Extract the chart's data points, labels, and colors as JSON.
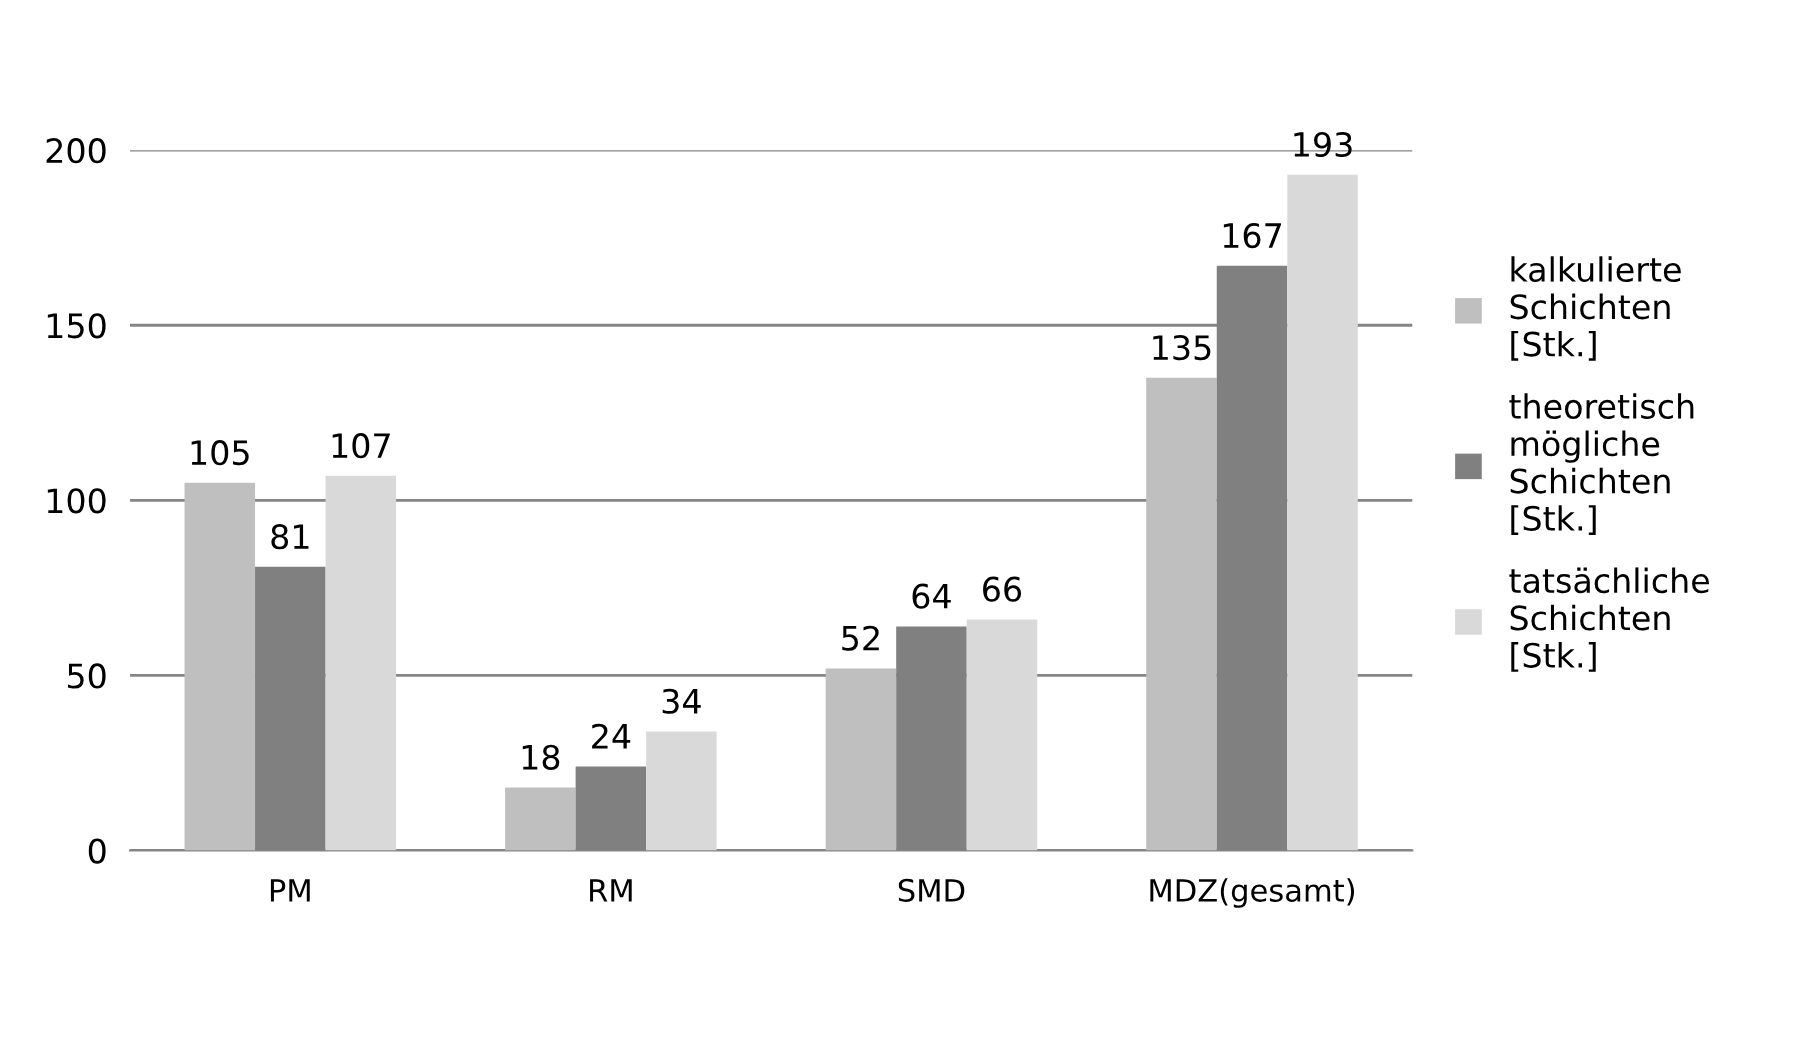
{
  "chart_data": {
    "type": "bar",
    "categories": [
      "PM",
      "RM",
      "SMD",
      "MDZ(gesamt)"
    ],
    "series": [
      {
        "name": "kalkulierte Schichten [Stk.]",
        "color": "#bfbfbf",
        "values": [
          105,
          18,
          52,
          135
        ]
      },
      {
        "name": "theoretisch mögliche Schichten [Stk.]",
        "color": "#808080",
        "values": [
          81,
          24,
          64,
          167
        ]
      },
      {
        "name": "tatsächliche Schichten [Stk.]",
        "color": "#d9d9d9",
        "values": [
          107,
          34,
          66,
          193
        ]
      }
    ],
    "ylim": [
      0,
      200
    ],
    "yticks": [
      0,
      50,
      100,
      150,
      200
    ],
    "grid": "y",
    "legend": "right",
    "data_labels": true
  }
}
